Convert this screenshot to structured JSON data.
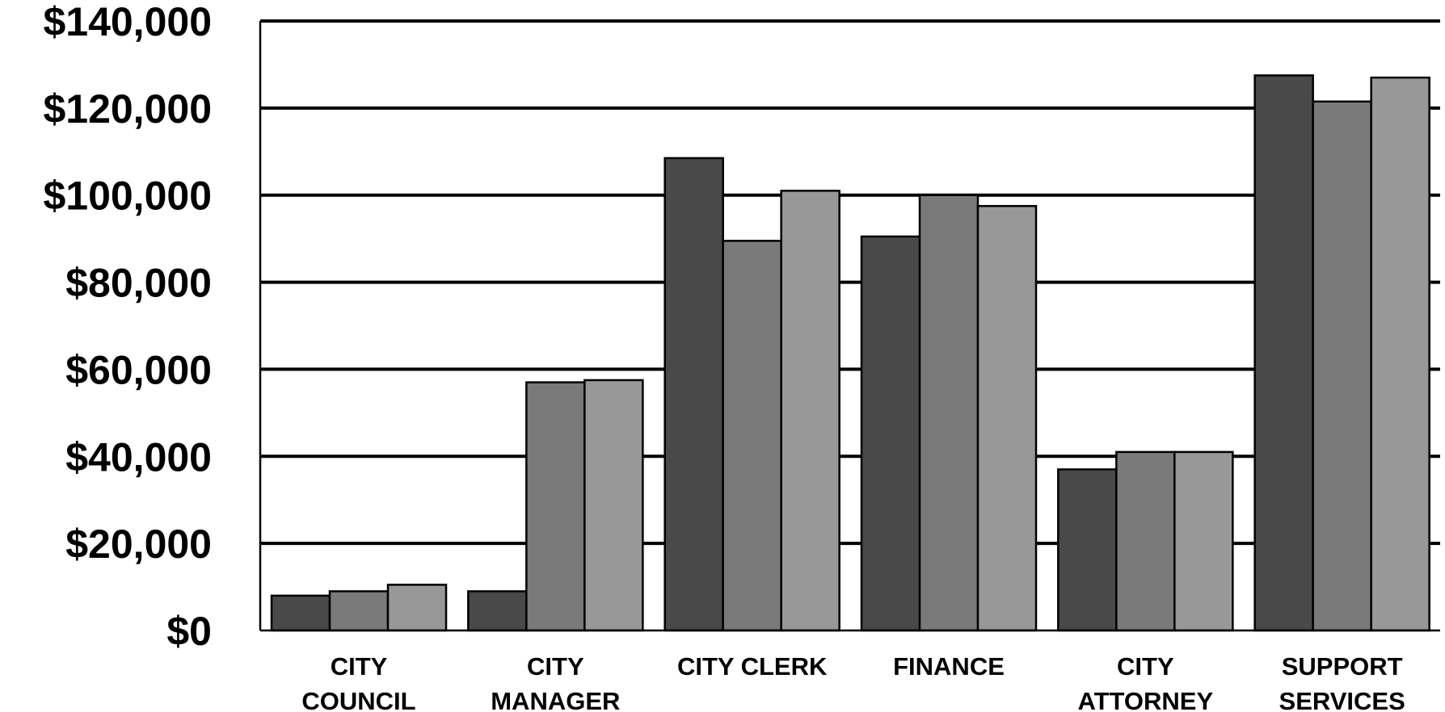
{
  "chart_data": {
    "type": "bar",
    "title": "",
    "xlabel": "",
    "ylabel": "",
    "ylim": [
      0,
      140000
    ],
    "grid": true,
    "yticks": [
      {
        "value": 0,
        "label": "$0"
      },
      {
        "value": 20000,
        "label": "$20,000"
      },
      {
        "value": 40000,
        "label": "$40,000"
      },
      {
        "value": 60000,
        "label": "$60,000"
      },
      {
        "value": 80000,
        "label": "$80,000"
      },
      {
        "value": 100000,
        "label": "$100,000"
      },
      {
        "value": 120000,
        "label": "$120,000"
      },
      {
        "value": 140000,
        "label": "$140,000"
      }
    ],
    "categories": [
      [
        "CITY",
        "COUNCIL"
      ],
      [
        "CITY",
        "MANAGER"
      ],
      [
        "CITY CLERK"
      ],
      [
        "FINANCE"
      ],
      [
        "CITY",
        "ATTORNEY"
      ],
      [
        "SUPPORT",
        "SERVICES"
      ]
    ],
    "series_colors": [
      "#494949",
      "#7a7a7a",
      "#989898"
    ],
    "series": [
      {
        "values": [
          8000,
          9000,
          108500,
          90500,
          37000,
          127500
        ]
      },
      {
        "values": [
          9000,
          57000,
          89500,
          100000,
          41000,
          121500
        ]
      },
      {
        "values": [
          10500,
          57500,
          101000,
          97500,
          41000,
          127000
        ]
      }
    ]
  }
}
